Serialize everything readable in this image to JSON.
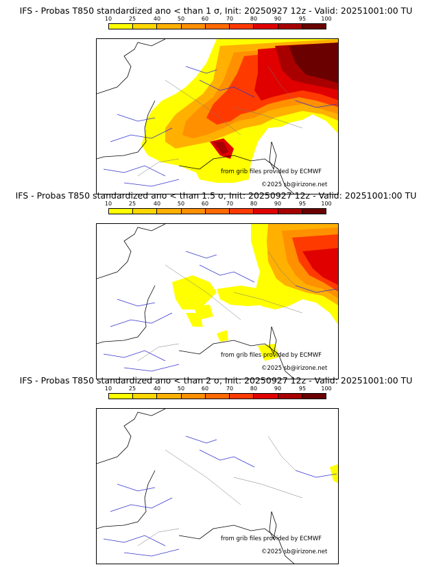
{
  "panels": [
    {
      "title": "IFS - Probas T850  standardized ano < than 1 σ, Init: 20250927 12z - Valid: 20251001:00 TU",
      "field": "probability T850 standardized anomaly below 1 sigma"
    },
    {
      "title": "IFS - Probas T850  standardized ano < than 1.5 σ, Init: 20250927 12z - Valid: 20251001:00 TU",
      "field": "probability T850 standardized anomaly below 1.5 sigma"
    },
    {
      "title": "IFS - Probas T850  standardized ano < than 2 σ, Init: 20250927 12z - Valid: 20251001:00 TU",
      "field": "probability T850 standardized anomaly below 2 sigma"
    }
  ],
  "colorbar": {
    "labels": [
      "10",
      "25",
      "40",
      "50",
      "60",
      "70",
      "80",
      "90",
      "95",
      "100"
    ],
    "colors": [
      "#ffff00",
      "#ffd700",
      "#ffb000",
      "#ff9000",
      "#ff6a00",
      "#ff3a00",
      "#e00000",
      "#a80000",
      "#6a0000"
    ]
  },
  "credits": {
    "source": "from grib files provided by ECMWF",
    "copyright": "©2025 sb@irizone.net"
  }
}
